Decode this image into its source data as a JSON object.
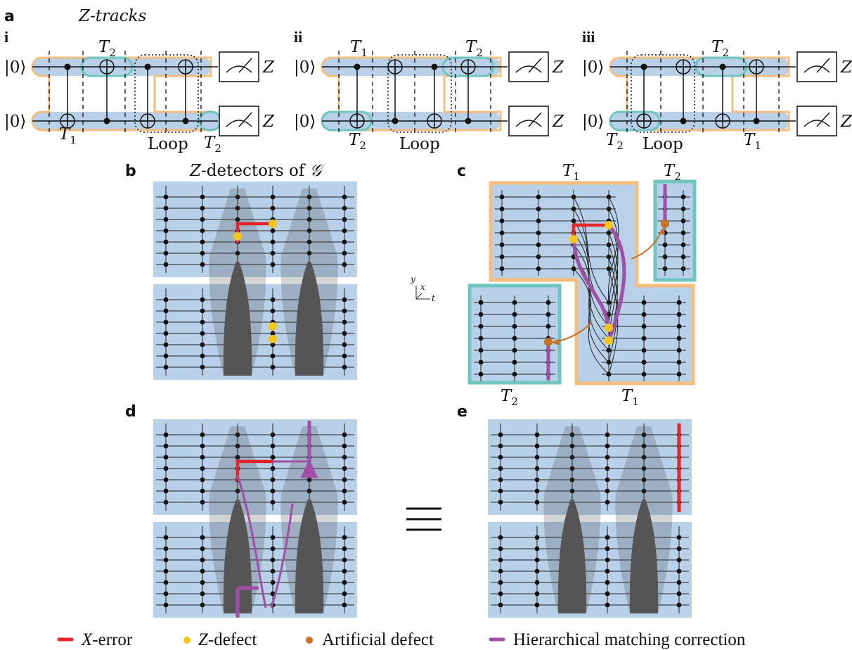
{
  "panel_labels": {
    "a": "a",
    "b": "b",
    "c": "c",
    "d": "d",
    "e": "e"
  },
  "a": {
    "title": "Z-tracks",
    "subpanels": [
      {
        "id": "i",
        "ket": "|0⟩",
        "meas": "Z",
        "loop": "Loop",
        "t1": "T",
        "t1_sub": "1",
        "t2": "T",
        "t2_sub": "2"
      },
      {
        "id": "ii",
        "ket": "|0⟩",
        "meas": "Z",
        "loop": "Loop",
        "t1": "T",
        "t1_sub": "1",
        "t2": "T",
        "t2_sub": "2"
      },
      {
        "id": "iii",
        "ket": "|0⟩",
        "meas": "Z",
        "loop": "Loop",
        "t1": "T",
        "t1_sub": "1",
        "t2": "T",
        "t2_sub": "2"
      }
    ]
  },
  "b": {
    "title_z": "Z",
    "title_rest": "-detectors of ",
    "title_g": "𝒢"
  },
  "c": {
    "t1": "T",
    "t1_sub": "1",
    "t2": "T",
    "t2_sub": "2"
  },
  "axes": {
    "y": "y",
    "x": "x",
    "t": "t"
  },
  "equiv": "≡",
  "legend": [
    {
      "sym": "X",
      "label": "-error",
      "color": "#e5252a",
      "shape": "line"
    },
    {
      "sym": "Z",
      "label": "-defect",
      "color": "#f5c518",
      "shape": "dot"
    },
    {
      "sym": "",
      "label": "Artificial defect",
      "color": "#c87228",
      "shape": "dot"
    },
    {
      "sym": "",
      "label": "Hierarchical matching correction",
      "color": "#a24ea8",
      "shape": "line"
    }
  ],
  "colors": {
    "panel_bg": "#b8d0e8",
    "track_orange": "#f5be7c",
    "track_teal": "#6ec6bf",
    "x_error": "#e5252a",
    "z_defect": "#f5c518",
    "artificial": "#c87228",
    "correction": "#a24ea8",
    "funnel": "#555555"
  }
}
